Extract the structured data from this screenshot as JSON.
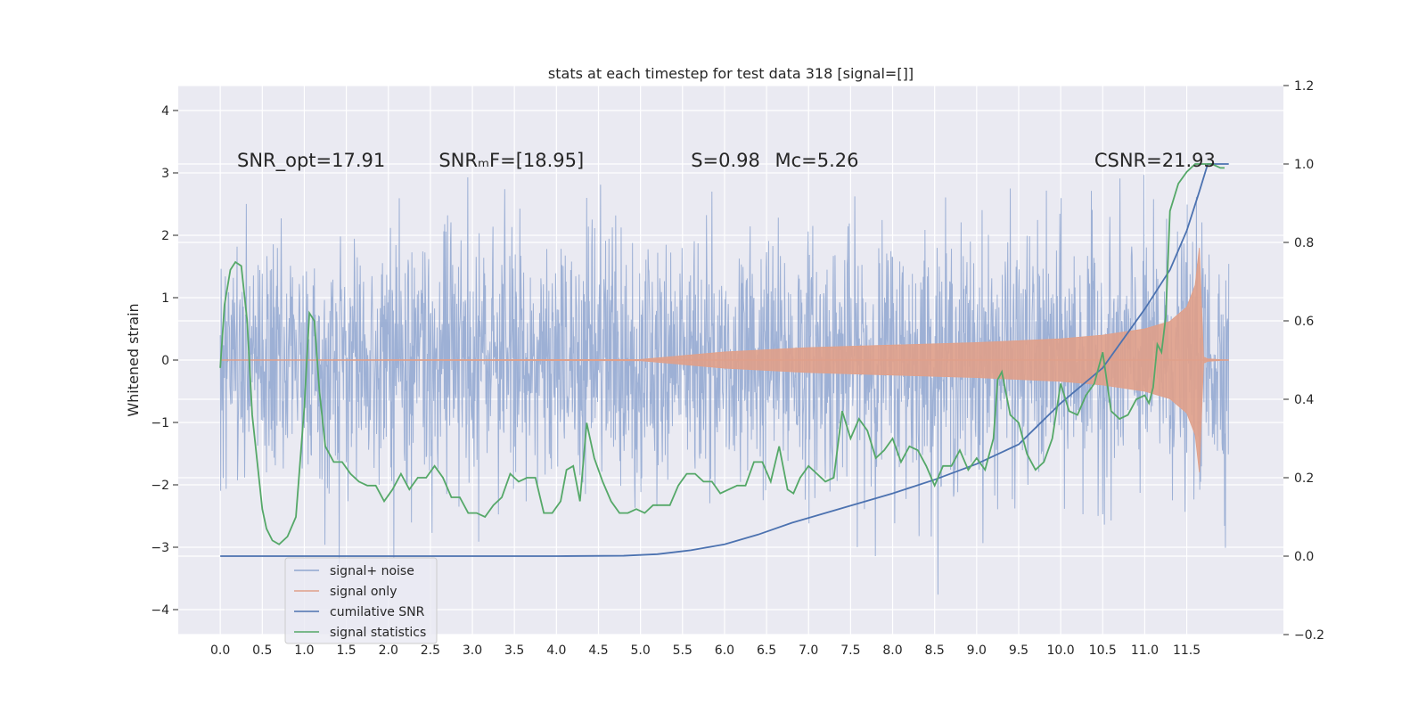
{
  "chart_data": {
    "type": "line",
    "title": "stats at each timestep for test data 318 [signal=[]]",
    "ylabel": "Whitened strain",
    "xlim": [
      -0.5,
      12.65
    ],
    "ylim_left": [
      -4.4,
      4.4
    ],
    "ylim_right": [
      -0.2,
      1.2
    ],
    "xticks": [
      0.0,
      0.5,
      1.0,
      1.5,
      2.0,
      2.5,
      3.0,
      3.5,
      4.0,
      4.5,
      5.0,
      5.5,
      6.0,
      6.5,
      7.0,
      7.5,
      8.0,
      8.5,
      9.0,
      9.5,
      10.0,
      10.5,
      11.0,
      11.5
    ],
    "xtick_labels": [
      "0.0",
      "0.5",
      "1.0",
      "1.5",
      "2.0",
      "2.5",
      "3.0",
      "3.5",
      "4.0",
      "4.5",
      "5.0",
      "5.5",
      "6.0",
      "6.5",
      "7.0",
      "7.5",
      "8.0",
      "8.5",
      "9.0",
      "9.5",
      "10.0",
      "10.5",
      "11.0",
      "11.5"
    ],
    "yticks_left": [
      -4,
      -3,
      -2,
      -1,
      0,
      1,
      2,
      3,
      4
    ],
    "ytick_labels_left": [
      "−4",
      "−3",
      "−2",
      "−1",
      "0",
      "1",
      "2",
      "3",
      "4"
    ],
    "yticks_right": [
      -0.2,
      0.0,
      0.2,
      0.4,
      0.6,
      0.8,
      1.0,
      1.2
    ],
    "ytick_labels_right": [
      "−0.2",
      "0.0",
      "0.2",
      "0.4",
      "0.6",
      "0.8",
      "1.0",
      "1.2"
    ],
    "grid": true,
    "legend_position": "lower-left",
    "annotations": [
      {
        "text": "SNR_opt=17.91",
        "x": 0.2
      },
      {
        "text": "SNRₘF=[18.95]",
        "x": 2.6
      },
      {
        "text": "S=0.98",
        "x": 5.6
      },
      {
        "text": "Mᴄ=5.26",
        "x": 6.6
      },
      {
        "text": "CSNR=21.93",
        "x": 10.4
      }
    ],
    "annotation_y": 3.2,
    "series": [
      {
        "name": "signal+ noise",
        "color": "#8fa6d0",
        "axis": "left",
        "kind": "noise",
        "t_start": 0.0,
        "t_end": 12.0,
        "amplitude_sigma": 1.0
      },
      {
        "name": "signal only",
        "color": "#e0a08a",
        "axis": "left",
        "kind": "chirp",
        "envelope": {
          "t": [
            0.0,
            5.0,
            6.0,
            7.0,
            8.0,
            9.0,
            10.0,
            10.5,
            11.0,
            11.3,
            11.5,
            11.6,
            11.65,
            11.7,
            11.75,
            12.0
          ],
          "amp": [
            0.0,
            0.01,
            0.13,
            0.2,
            0.24,
            0.28,
            0.34,
            0.4,
            0.5,
            0.62,
            0.85,
            1.2,
            1.8,
            0.05,
            0.02,
            0.0
          ]
        }
      },
      {
        "name": "cumilative SNR",
        "color": "#4c72b0",
        "axis": "right",
        "x": [
          0.0,
          4.0,
          4.8,
          5.2,
          5.6,
          6.0,
          6.4,
          6.8,
          7.2,
          7.6,
          8.0,
          8.5,
          9.0,
          9.5,
          10.0,
          10.5,
          11.0,
          11.3,
          11.5,
          11.65,
          11.75,
          12.0
        ],
        "y": [
          0.0,
          0.0,
          0.001,
          0.005,
          0.015,
          0.03,
          0.055,
          0.085,
          0.11,
          0.135,
          0.16,
          0.195,
          0.235,
          0.285,
          0.39,
          0.48,
          0.63,
          0.73,
          0.83,
          0.93,
          1.0,
          1.0
        ]
      },
      {
        "name": "signal statistics",
        "color": "#55a868",
        "axis": "right",
        "x": [
          0.0,
          0.05,
          0.12,
          0.18,
          0.25,
          0.32,
          0.38,
          0.45,
          0.5,
          0.55,
          0.62,
          0.7,
          0.8,
          0.9,
          1.0,
          1.06,
          1.12,
          1.18,
          1.25,
          1.35,
          1.45,
          1.55,
          1.65,
          1.75,
          1.85,
          1.95,
          2.05,
          2.15,
          2.25,
          2.35,
          2.45,
          2.55,
          2.65,
          2.75,
          2.85,
          2.95,
          3.05,
          3.15,
          3.25,
          3.35,
          3.45,
          3.55,
          3.65,
          3.75,
          3.85,
          3.95,
          4.05,
          4.12,
          4.2,
          4.28,
          4.36,
          4.45,
          4.55,
          4.65,
          4.75,
          4.85,
          4.95,
          5.05,
          5.15,
          5.25,
          5.35,
          5.45,
          5.55,
          5.65,
          5.75,
          5.85,
          5.95,
          6.05,
          6.15,
          6.25,
          6.35,
          6.45,
          6.55,
          6.65,
          6.75,
          6.82,
          6.9,
          7.0,
          7.1,
          7.2,
          7.3,
          7.4,
          7.5,
          7.6,
          7.7,
          7.8,
          7.9,
          8.0,
          8.1,
          8.2,
          8.3,
          8.4,
          8.5,
          8.6,
          8.7,
          8.8,
          8.9,
          9.0,
          9.1,
          9.2,
          9.25,
          9.3,
          9.4,
          9.5,
          9.6,
          9.7,
          9.8,
          9.9,
          10.0,
          10.1,
          10.2,
          10.3,
          10.4,
          10.5,
          10.6,
          10.7,
          10.8,
          10.9,
          11.0,
          11.05,
          11.1,
          11.15,
          11.2,
          11.25,
          11.3,
          11.4,
          11.5,
          11.6,
          11.7,
          11.8,
          11.9,
          11.95
        ],
        "y": [
          0.48,
          0.64,
          0.73,
          0.75,
          0.74,
          0.6,
          0.36,
          0.22,
          0.12,
          0.07,
          0.04,
          0.03,
          0.05,
          0.1,
          0.38,
          0.62,
          0.6,
          0.42,
          0.28,
          0.24,
          0.24,
          0.21,
          0.19,
          0.18,
          0.18,
          0.14,
          0.17,
          0.21,
          0.17,
          0.2,
          0.2,
          0.23,
          0.2,
          0.15,
          0.15,
          0.11,
          0.11,
          0.1,
          0.13,
          0.15,
          0.21,
          0.19,
          0.2,
          0.2,
          0.11,
          0.11,
          0.14,
          0.22,
          0.23,
          0.14,
          0.34,
          0.25,
          0.19,
          0.14,
          0.11,
          0.11,
          0.12,
          0.11,
          0.13,
          0.13,
          0.13,
          0.18,
          0.21,
          0.21,
          0.19,
          0.19,
          0.16,
          0.17,
          0.18,
          0.18,
          0.24,
          0.24,
          0.19,
          0.28,
          0.17,
          0.16,
          0.2,
          0.23,
          0.21,
          0.19,
          0.2,
          0.37,
          0.3,
          0.35,
          0.32,
          0.25,
          0.27,
          0.3,
          0.24,
          0.28,
          0.27,
          0.23,
          0.18,
          0.23,
          0.23,
          0.27,
          0.22,
          0.25,
          0.22,
          0.3,
          0.45,
          0.47,
          0.36,
          0.34,
          0.26,
          0.22,
          0.24,
          0.3,
          0.44,
          0.37,
          0.36,
          0.41,
          0.44,
          0.52,
          0.37,
          0.35,
          0.36,
          0.4,
          0.41,
          0.39,
          0.43,
          0.54,
          0.52,
          0.61,
          0.88,
          0.95,
          0.98,
          1.0,
          1.0,
          1.0,
          0.99,
          0.99
        ]
      }
    ]
  }
}
